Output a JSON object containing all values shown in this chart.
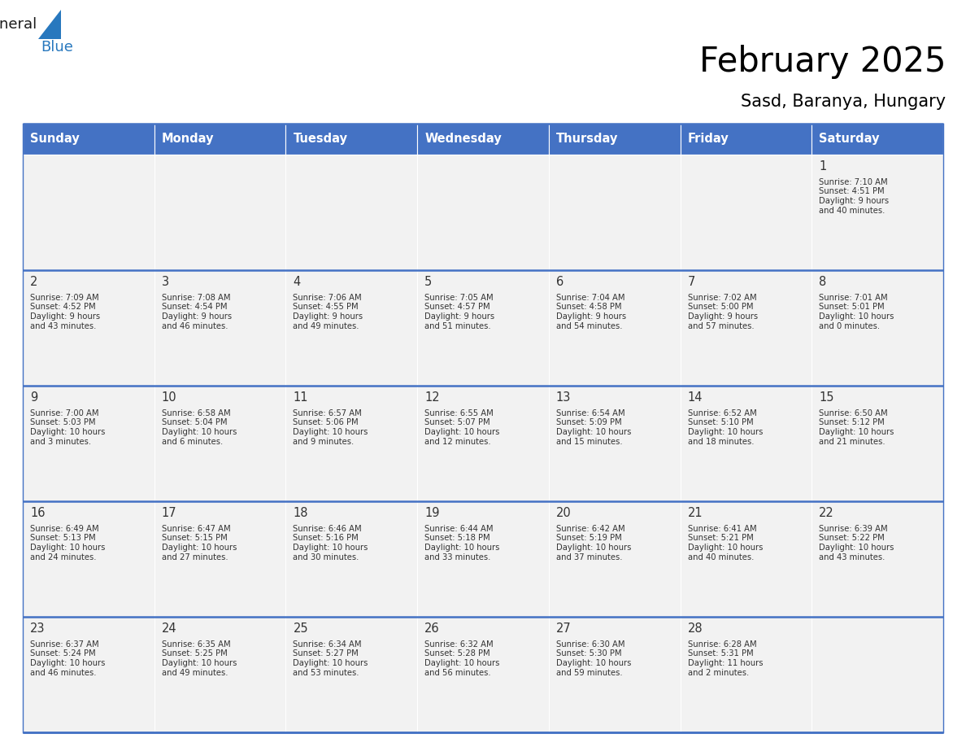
{
  "title": "February 2025",
  "subtitle": "Sasd, Baranya, Hungary",
  "header_bg": "#4472C4",
  "header_text": "#FFFFFF",
  "cell_bg": "#F2F2F2",
  "border_color": "#4472C4",
  "text_color": "#333333",
  "day_names": [
    "Sunday",
    "Monday",
    "Tuesday",
    "Wednesday",
    "Thursday",
    "Friday",
    "Saturday"
  ],
  "days": [
    {
      "day": 1,
      "col": 6,
      "row": 0,
      "sunrise": "7:10 AM",
      "sunset": "4:51 PM",
      "daylight": "9 hours and 40 minutes."
    },
    {
      "day": 2,
      "col": 0,
      "row": 1,
      "sunrise": "7:09 AM",
      "sunset": "4:52 PM",
      "daylight": "9 hours and 43 minutes."
    },
    {
      "day": 3,
      "col": 1,
      "row": 1,
      "sunrise": "7:08 AM",
      "sunset": "4:54 PM",
      "daylight": "9 hours and 46 minutes."
    },
    {
      "day": 4,
      "col": 2,
      "row": 1,
      "sunrise": "7:06 AM",
      "sunset": "4:55 PM",
      "daylight": "9 hours and 49 minutes."
    },
    {
      "day": 5,
      "col": 3,
      "row": 1,
      "sunrise": "7:05 AM",
      "sunset": "4:57 PM",
      "daylight": "9 hours and 51 minutes."
    },
    {
      "day": 6,
      "col": 4,
      "row": 1,
      "sunrise": "7:04 AM",
      "sunset": "4:58 PM",
      "daylight": "9 hours and 54 minutes."
    },
    {
      "day": 7,
      "col": 5,
      "row": 1,
      "sunrise": "7:02 AM",
      "sunset": "5:00 PM",
      "daylight": "9 hours and 57 minutes."
    },
    {
      "day": 8,
      "col": 6,
      "row": 1,
      "sunrise": "7:01 AM",
      "sunset": "5:01 PM",
      "daylight": "10 hours and 0 minutes."
    },
    {
      "day": 9,
      "col": 0,
      "row": 2,
      "sunrise": "7:00 AM",
      "sunset": "5:03 PM",
      "daylight": "10 hours and 3 minutes."
    },
    {
      "day": 10,
      "col": 1,
      "row": 2,
      "sunrise": "6:58 AM",
      "sunset": "5:04 PM",
      "daylight": "10 hours and 6 minutes."
    },
    {
      "day": 11,
      "col": 2,
      "row": 2,
      "sunrise": "6:57 AM",
      "sunset": "5:06 PM",
      "daylight": "10 hours and 9 minutes."
    },
    {
      "day": 12,
      "col": 3,
      "row": 2,
      "sunrise": "6:55 AM",
      "sunset": "5:07 PM",
      "daylight": "10 hours and 12 minutes."
    },
    {
      "day": 13,
      "col": 4,
      "row": 2,
      "sunrise": "6:54 AM",
      "sunset": "5:09 PM",
      "daylight": "10 hours and 15 minutes."
    },
    {
      "day": 14,
      "col": 5,
      "row": 2,
      "sunrise": "6:52 AM",
      "sunset": "5:10 PM",
      "daylight": "10 hours and 18 minutes."
    },
    {
      "day": 15,
      "col": 6,
      "row": 2,
      "sunrise": "6:50 AM",
      "sunset": "5:12 PM",
      "daylight": "10 hours and 21 minutes."
    },
    {
      "day": 16,
      "col": 0,
      "row": 3,
      "sunrise": "6:49 AM",
      "sunset": "5:13 PM",
      "daylight": "10 hours and 24 minutes."
    },
    {
      "day": 17,
      "col": 1,
      "row": 3,
      "sunrise": "6:47 AM",
      "sunset": "5:15 PM",
      "daylight": "10 hours and 27 minutes."
    },
    {
      "day": 18,
      "col": 2,
      "row": 3,
      "sunrise": "6:46 AM",
      "sunset": "5:16 PM",
      "daylight": "10 hours and 30 minutes."
    },
    {
      "day": 19,
      "col": 3,
      "row": 3,
      "sunrise": "6:44 AM",
      "sunset": "5:18 PM",
      "daylight": "10 hours and 33 minutes."
    },
    {
      "day": 20,
      "col": 4,
      "row": 3,
      "sunrise": "6:42 AM",
      "sunset": "5:19 PM",
      "daylight": "10 hours and 37 minutes."
    },
    {
      "day": 21,
      "col": 5,
      "row": 3,
      "sunrise": "6:41 AM",
      "sunset": "5:21 PM",
      "daylight": "10 hours and 40 minutes."
    },
    {
      "day": 22,
      "col": 6,
      "row": 3,
      "sunrise": "6:39 AM",
      "sunset": "5:22 PM",
      "daylight": "10 hours and 43 minutes."
    },
    {
      "day": 23,
      "col": 0,
      "row": 4,
      "sunrise": "6:37 AM",
      "sunset": "5:24 PM",
      "daylight": "10 hours and 46 minutes."
    },
    {
      "day": 24,
      "col": 1,
      "row": 4,
      "sunrise": "6:35 AM",
      "sunset": "5:25 PM",
      "daylight": "10 hours and 49 minutes."
    },
    {
      "day": 25,
      "col": 2,
      "row": 4,
      "sunrise": "6:34 AM",
      "sunset": "5:27 PM",
      "daylight": "10 hours and 53 minutes."
    },
    {
      "day": 26,
      "col": 3,
      "row": 4,
      "sunrise": "6:32 AM",
      "sunset": "5:28 PM",
      "daylight": "10 hours and 56 minutes."
    },
    {
      "day": 27,
      "col": 4,
      "row": 4,
      "sunrise": "6:30 AM",
      "sunset": "5:30 PM",
      "daylight": "10 hours and 59 minutes."
    },
    {
      "day": 28,
      "col": 5,
      "row": 4,
      "sunrise": "6:28 AM",
      "sunset": "5:31 PM",
      "daylight": "11 hours and 2 minutes."
    }
  ],
  "num_rows": 5,
  "num_cols": 7,
  "fig_width": 11.88,
  "fig_height": 9.18,
  "dpi": 100
}
